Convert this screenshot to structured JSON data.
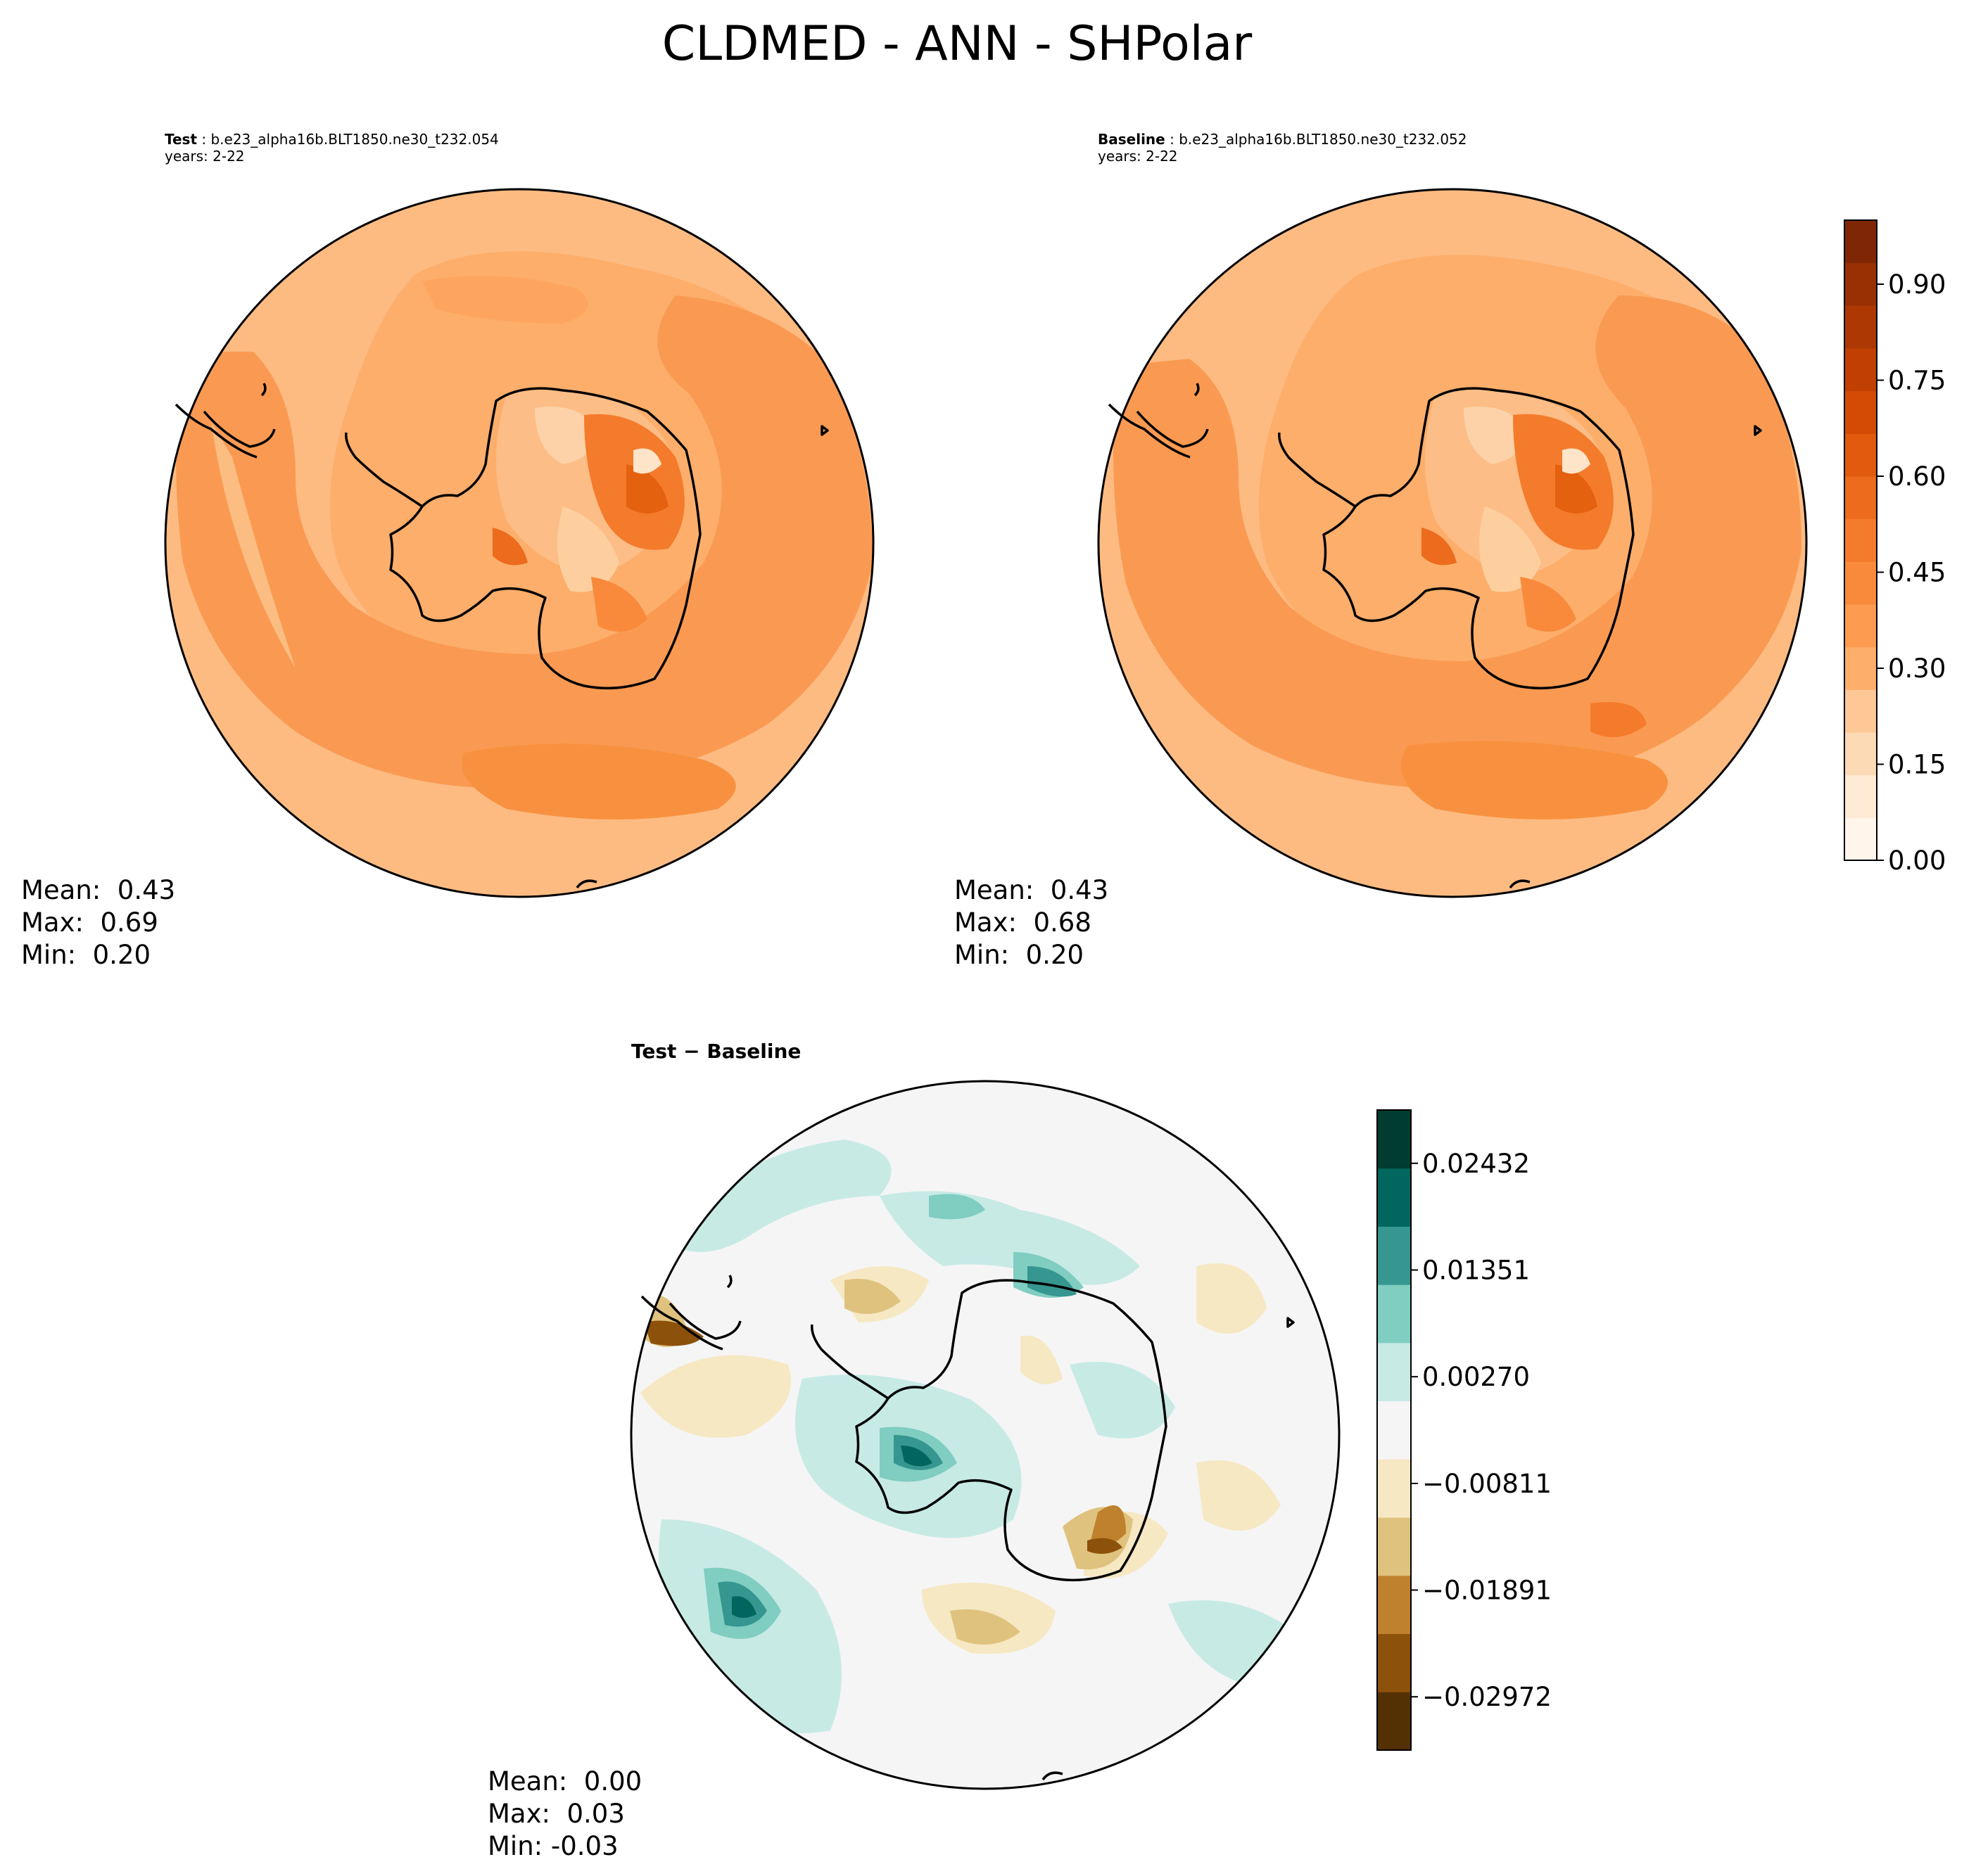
{
  "title": "CLDMED - ANN - SHPolar",
  "panels": {
    "test": {
      "label": "Test",
      "case": "b.e23_alpha16b.BLT1850.ne30_t232.054",
      "years": "years: 2-22",
      "mean": "Mean:  0.43",
      "max": "Max:  0.69",
      "min": "Min:  0.20"
    },
    "baseline": {
      "label": "Baseline",
      "case": "b.e23_alpha16b.BLT1850.ne30_t232.052",
      "years": "years: 2-22",
      "mean": "Mean:  0.43",
      "max": "Max:  0.68",
      "min": "Min:  0.20"
    },
    "diff": {
      "title": "Test − Baseline",
      "mean": "Mean:  0.00",
      "max": "Max:  0.03",
      "min": "Min: -0.03"
    }
  },
  "colors": {
    "oranges": [
      "#fff5eb",
      "#feead5",
      "#fddab6",
      "#fdc895",
      "#fdae6b",
      "#fd9b51",
      "#f98a3c",
      "#f47b2b",
      "#ec6b1d",
      "#e25a0e",
      "#d44b06",
      "#c23f03",
      "#ad3803",
      "#983003",
      "#7f2704"
    ],
    "brbg": [
      "#543005",
      "#8c510a",
      "#bf812d",
      "#dfc27d",
      "#f6e8c3",
      "#f5f5f5",
      "#c7eae5",
      "#80cdc1",
      "#35978f",
      "#01665e",
      "#003c30"
    ]
  },
  "chart_data": [
    {
      "type": "heatmap",
      "name": "Test",
      "projection": "south polar stereographic",
      "variable": "CLDMED",
      "colorbar": {
        "range": [
          0.0,
          1.0
        ],
        "levels": 15,
        "ticks": [
          {
            "value": 0.0,
            "label": "0.00"
          },
          {
            "value": 0.15,
            "label": "0.15"
          },
          {
            "value": 0.3,
            "label": "0.30"
          },
          {
            "value": 0.45,
            "label": "0.45"
          },
          {
            "value": 0.6,
            "label": "0.60"
          },
          {
            "value": 0.75,
            "label": "0.75"
          },
          {
            "value": 0.9,
            "label": "0.90"
          }
        ]
      },
      "stats": {
        "mean": 0.43,
        "max": 0.69,
        "min": 0.2
      }
    },
    {
      "type": "heatmap",
      "name": "Baseline",
      "projection": "south polar stereographic",
      "variable": "CLDMED",
      "stats": {
        "mean": 0.43,
        "max": 0.68,
        "min": 0.2
      }
    },
    {
      "type": "heatmap",
      "name": "Test − Baseline",
      "projection": "south polar stereographic",
      "colorbar": {
        "range": [
          -0.03512,
          0.02972
        ],
        "ticks": [
          {
            "value": 0.02432,
            "label": "0.02432"
          },
          {
            "value": 0.01351,
            "label": "0.01351"
          },
          {
            "value": 0.0027,
            "label": "0.00270"
          },
          {
            "value": -0.00811,
            "label": "−0.00811"
          },
          {
            "value": -0.01891,
            "label": "−0.01891"
          },
          {
            "value": -0.02972,
            "label": "−0.02972"
          }
        ]
      },
      "stats": {
        "mean": 0.0,
        "max": 0.03,
        "min": -0.03
      }
    }
  ]
}
